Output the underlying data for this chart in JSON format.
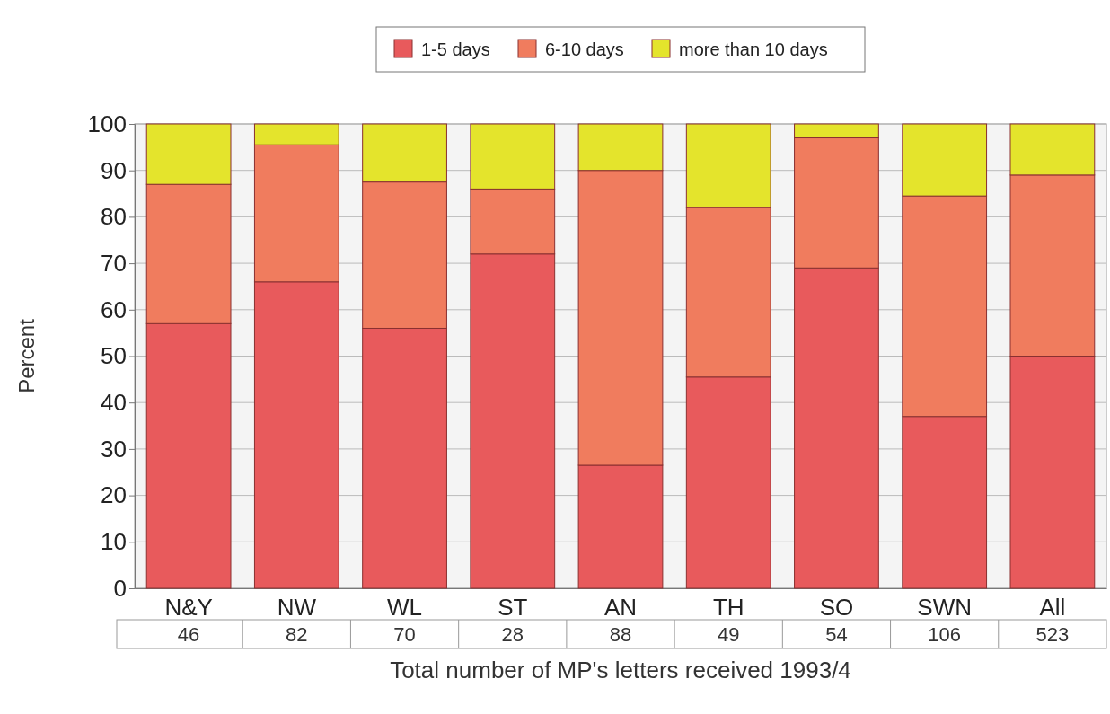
{
  "chart_data": {
    "type": "bar",
    "stacked": true,
    "ylabel": "Percent",
    "xlabel": "Total number of MP's letters received 1993/4",
    "categories": [
      "N&Y",
      "NW",
      "WL",
      "ST",
      "AN",
      "TH",
      "SO",
      "SWN",
      "All"
    ],
    "series": [
      {
        "name": "1-5 days",
        "color": "#e85a5c",
        "values": [
          57,
          66,
          56,
          72,
          26.5,
          45.5,
          69,
          37,
          50
        ]
      },
      {
        "name": "6-10 days",
        "color": "#f07c5e",
        "values": [
          30,
          29.5,
          31.5,
          14,
          63.5,
          36.5,
          28,
          47.5,
          39
        ]
      },
      {
        "name": "more than 10 days",
        "color": "#e4e42c",
        "values": [
          13,
          4.5,
          12.5,
          14,
          10,
          18,
          3,
          15.5,
          11
        ]
      }
    ],
    "ylim": [
      0,
      100
    ],
    "yticks": [
      0,
      10,
      20,
      30,
      40,
      50,
      60,
      70,
      80,
      90,
      100
    ],
    "grid": "y",
    "legend": "top",
    "annotations": [
      "46",
      "82",
      "70",
      "28",
      "88",
      "49",
      "54",
      "106",
      "523"
    ]
  }
}
